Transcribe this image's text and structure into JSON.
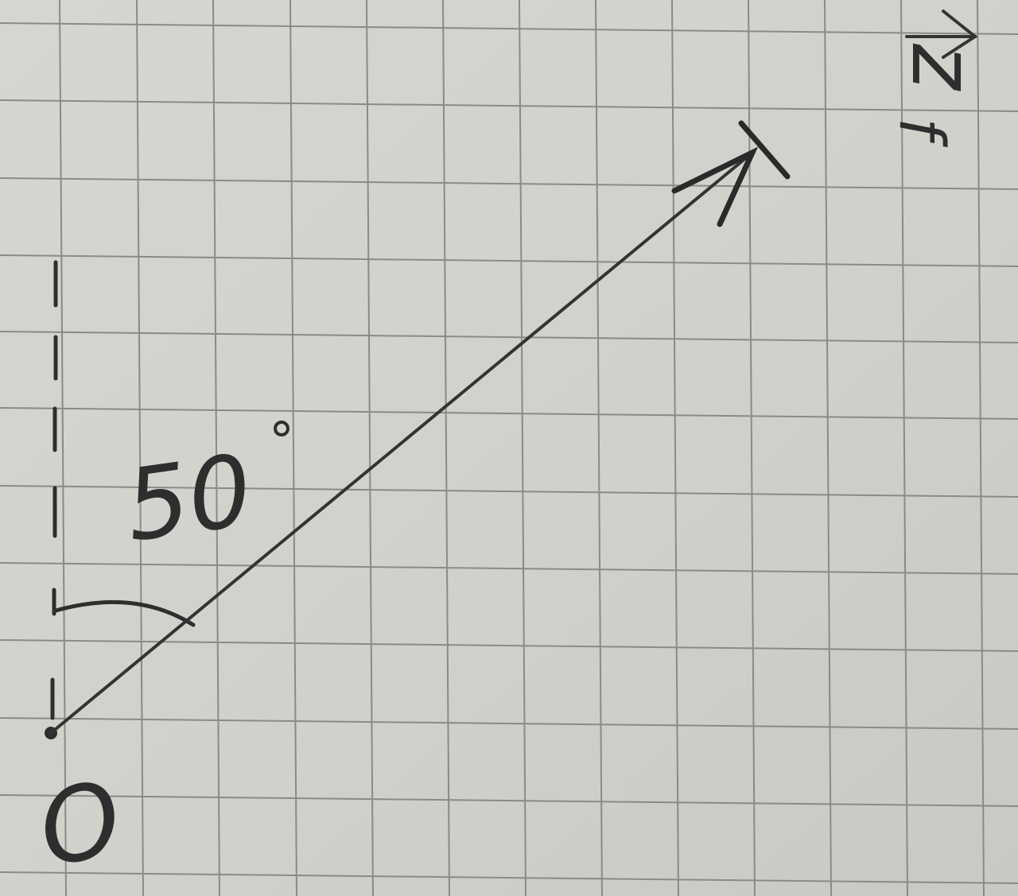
{
  "diagram": {
    "origin_label": "O",
    "angle_label": "50",
    "angle_unit": "°",
    "angle_degrees": 50,
    "vector_label": "z",
    "vector_subscript": "f",
    "colors": {
      "paper": "#d2d2cd",
      "grid": "#8a8a86",
      "pencil": "#2e2e2e"
    }
  }
}
